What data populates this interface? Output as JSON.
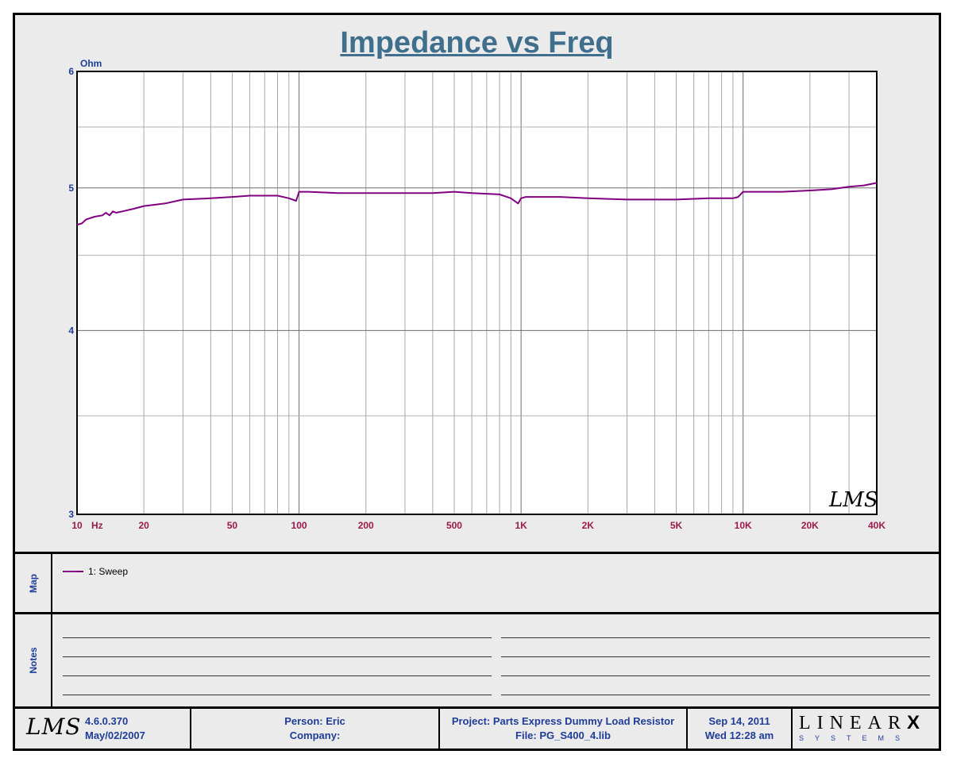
{
  "title": "Impedance vs Freq",
  "colors": {
    "trace": "#800080",
    "axis_text": "#1f3d99",
    "tick_x": "#9b1a4b",
    "title": "#3f6f8c",
    "grid": "#9a9a9a"
  },
  "chart_data": {
    "type": "line",
    "title": "Impedance vs Freq",
    "xlabel": "Hz",
    "ylabel": "Ohm",
    "xscale": "log",
    "yscale": "log",
    "xlim": [
      10,
      40000
    ],
    "ylim": [
      3,
      6
    ],
    "x_tick_labels": [
      {
        "v": 10,
        "t": "10"
      },
      {
        "v": 20,
        "t": "20"
      },
      {
        "v": 50,
        "t": "50"
      },
      {
        "v": 100,
        "t": "100"
      },
      {
        "v": 200,
        "t": "200"
      },
      {
        "v": 500,
        "t": "500"
      },
      {
        "v": 1000,
        "t": "1K"
      },
      {
        "v": 2000,
        "t": "2K"
      },
      {
        "v": 5000,
        "t": "5K"
      },
      {
        "v": 10000,
        "t": "10K"
      },
      {
        "v": 20000,
        "t": "20K"
      },
      {
        "v": 40000,
        "t": "40K"
      }
    ],
    "y_tick_labels": [
      {
        "v": 3,
        "t": "3"
      },
      {
        "v": 4,
        "t": "4"
      },
      {
        "v": 5,
        "t": "5"
      },
      {
        "v": 6,
        "t": "6"
      }
    ],
    "grid": true,
    "series": [
      {
        "name": "1: Sweep",
        "x": [
          10,
          10.5,
          11,
          12,
          13,
          13.5,
          14,
          14.5,
          15,
          16,
          18,
          20,
          25,
          30,
          40,
          50,
          60,
          80,
          90,
          97,
          100,
          110,
          150,
          200,
          300,
          400,
          500,
          600,
          800,
          900,
          970,
          1000,
          1050,
          1200,
          1500,
          2000,
          3000,
          4000,
          5000,
          7000,
          9000,
          9500,
          10000,
          11000,
          15000,
          20000,
          25000,
          30000,
          35000,
          40000
        ],
        "y": [
          4.72,
          4.73,
          4.76,
          4.78,
          4.79,
          4.81,
          4.79,
          4.82,
          4.81,
          4.82,
          4.84,
          4.86,
          4.88,
          4.91,
          4.92,
          4.93,
          4.94,
          4.94,
          4.92,
          4.9,
          4.97,
          4.97,
          4.96,
          4.96,
          4.96,
          4.96,
          4.97,
          4.96,
          4.95,
          4.92,
          4.88,
          4.92,
          4.93,
          4.93,
          4.93,
          4.92,
          4.91,
          4.91,
          4.91,
          4.92,
          4.92,
          4.93,
          4.97,
          4.97,
          4.97,
          4.98,
          4.99,
          5.01,
          5.02,
          5.04
        ]
      }
    ],
    "hz_label": "Hz"
  },
  "map": {
    "label": "Map",
    "legend": "1: Sweep"
  },
  "notes": {
    "label": "Notes"
  },
  "footer": {
    "version": "4.6.0.370",
    "build_date": "May/02/2007",
    "person": "Person: Eric",
    "company": "Company:",
    "project": "Project: Parts Express Dummy Load Resistor",
    "file": "File: PG_S400_4.lib",
    "date": "Sep 14, 2011",
    "time": "Wed 12:28 am",
    "logo_lms": "LMS",
    "brand_top": "LINEAR",
    "brand_x": "X",
    "brand_bottom": "SYSTEMS"
  },
  "watermark": "LMS"
}
